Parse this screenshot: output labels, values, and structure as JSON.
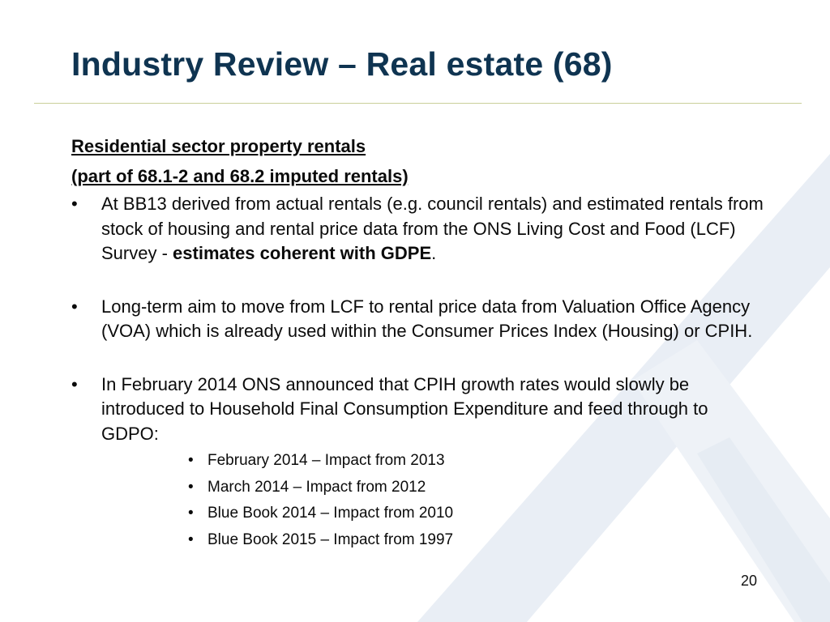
{
  "slide": {
    "title": "Industry Review – Real estate (68)",
    "page_number": "20"
  },
  "content": {
    "heading_line1": "Residential sector property rentals",
    "heading_line2": "(part of 68.1-2 and 68.2 imputed rentals)",
    "bullet_symbol": "•",
    "bullets": [
      {
        "text": "At BB13 derived from actual rentals (e.g. council rentals) and estimated rentals from stock of housing and rental price data from the ONS Living Cost and Food (LCF) Survey - ",
        "bold": "estimates coherent with GDPE",
        "after": "."
      },
      {
        "text": "Long-term aim to move from LCF to rental price data from Valuation Office Agency (VOA) which is already used within the Consumer Prices Index (Housing) or CPIH."
      },
      {
        "text": "In February 2014 ONS announced that CPIH growth rates would slowly be introduced to Household Final Consumption Expenditure and feed through to GDPO:"
      }
    ],
    "sub_items": [
      "February 2014 – Impact from 2013",
      "March 2014 – Impact from 2012",
      "Blue Book 2014 – Impact from 2010",
      "Blue Book 2015 – Impact from 1997"
    ]
  },
  "colors": {
    "title": "#0f3451",
    "rule": "#c9cf9a",
    "watermark": "#e6ecf3"
  }
}
